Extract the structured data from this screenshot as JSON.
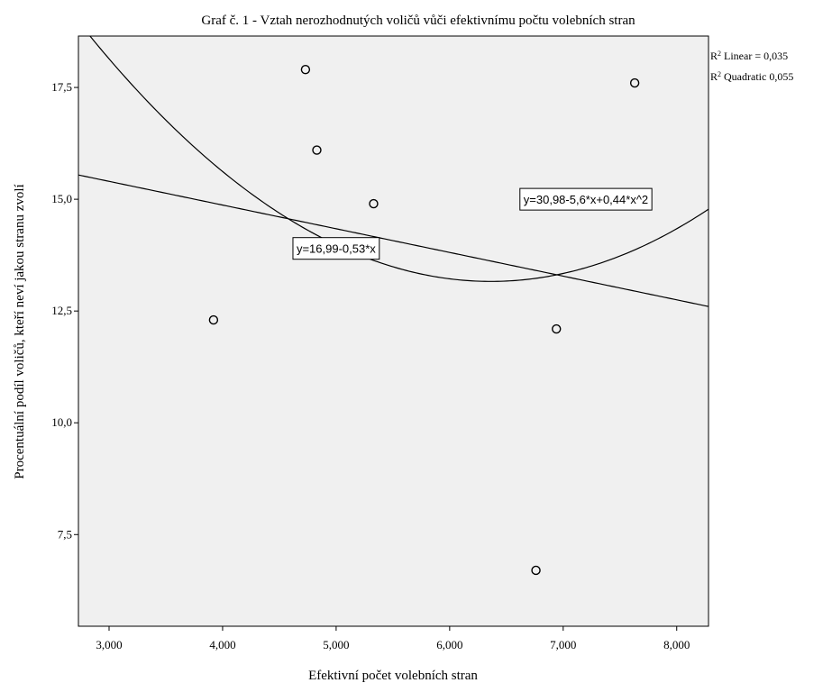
{
  "chart_data": {
    "type": "scatter",
    "title": "Graf č. 1 - Vztah nerozhodnutých voličů vůči efektivnímu počtu volebních stran",
    "xlabel": "Efektivní počet volebních stran",
    "ylabel": "Procentuální podíl voličů, kteří neví jakou stranu zvolí",
    "xlim": [
      2.73,
      8.28
    ],
    "ylim": [
      5.45,
      18.65
    ],
    "x_ticks": [
      {
        "value": 3,
        "label": "3,000"
      },
      {
        "value": 4,
        "label": "4,000"
      },
      {
        "value": 5,
        "label": "5,000"
      },
      {
        "value": 6,
        "label": "6,000"
      },
      {
        "value": 7,
        "label": "7,000"
      },
      {
        "value": 8,
        "label": "8,000"
      }
    ],
    "y_ticks": [
      {
        "value": 7.5,
        "label": "7,5"
      },
      {
        "value": 10,
        "label": "10,0"
      },
      {
        "value": 12.5,
        "label": "12,5"
      },
      {
        "value": 15,
        "label": "15,0"
      },
      {
        "value": 17.5,
        "label": "17,5"
      }
    ],
    "grid": false,
    "plot_background": "#f0f0f0",
    "points": [
      {
        "x": 3.92,
        "y": 12.3
      },
      {
        "x": 4.73,
        "y": 17.9
      },
      {
        "x": 4.83,
        "y": 16.1
      },
      {
        "x": 5.33,
        "y": 14.9
      },
      {
        "x": 6.76,
        "y": 6.7
      },
      {
        "x": 6.94,
        "y": 12.1
      },
      {
        "x": 7.63,
        "y": 17.6
      }
    ],
    "fits": [
      {
        "kind": "linear",
        "equation": "y=16,99-0,53*x",
        "coefficients": [
          16.99,
          -0.53
        ],
        "label_at": {
          "x": 5.0,
          "y": 13.9
        }
      },
      {
        "kind": "quadratic",
        "equation": "y=30,98-5,6*x+0,44*x^2",
        "coefficients": [
          30.98,
          -5.6,
          0.44
        ],
        "label_at": {
          "x": 7.2,
          "y": 15.0
        }
      }
    ],
    "r2": [
      {
        "label": "Linear = 0,035"
      },
      {
        "label": "Quadratic 0,055"
      }
    ],
    "legend_position": "top-right"
  }
}
